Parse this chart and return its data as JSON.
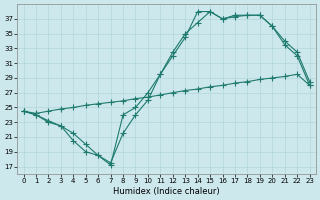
{
  "xlabel": "Humidex (Indice chaleur)",
  "bg_color": "#cde8ec",
  "line_color": "#1e7a6e",
  "grid_color": "#b2d8dc",
  "xlim": [
    -0.5,
    23.5
  ],
  "ylim": [
    16.0,
    39.0
  ],
  "xticks": [
    0,
    1,
    2,
    3,
    4,
    5,
    6,
    7,
    8,
    9,
    10,
    11,
    12,
    13,
    14,
    15,
    16,
    17,
    18,
    19,
    20,
    21,
    22,
    23
  ],
  "yticks": [
    17,
    19,
    21,
    23,
    25,
    27,
    29,
    31,
    33,
    35,
    37
  ],
  "line1_x": [
    0,
    1,
    2,
    3,
    4,
    5,
    6,
    7,
    8,
    9,
    10,
    11,
    12,
    13,
    14,
    15,
    16,
    17,
    18,
    19,
    20,
    21,
    22,
    23
  ],
  "line1_y": [
    24.5,
    24.0,
    23.2,
    22.5,
    20.5,
    19.0,
    18.5,
    17.2,
    24.0,
    25.0,
    27.0,
    29.5,
    32.0,
    34.5,
    38.0,
    38.0,
    37.0,
    37.5,
    37.5,
    37.5,
    36.0,
    33.5,
    32.0,
    28.0
  ],
  "line2_x": [
    0,
    1,
    2,
    3,
    4,
    5,
    6,
    7,
    8,
    9,
    10,
    11,
    12,
    13,
    14,
    15,
    16,
    17,
    18,
    19,
    20,
    21,
    22,
    23
  ],
  "line2_y": [
    24.5,
    24.2,
    24.5,
    24.8,
    25.0,
    25.3,
    25.5,
    25.7,
    25.9,
    26.2,
    26.4,
    26.7,
    27.0,
    27.3,
    27.5,
    27.8,
    28.0,
    28.3,
    28.5,
    28.8,
    29.0,
    29.2,
    29.5,
    28.0
  ],
  "line3_x": [
    0,
    1,
    2,
    3,
    4,
    5,
    6,
    7,
    8,
    9,
    10,
    11,
    12,
    13,
    14,
    15,
    16,
    17,
    18,
    19,
    20,
    21,
    22,
    23
  ],
  "line3_y": [
    24.5,
    24.0,
    23.0,
    22.5,
    21.5,
    20.0,
    18.5,
    17.5,
    21.5,
    24.0,
    26.0,
    29.5,
    32.5,
    35.0,
    36.5,
    38.0,
    37.0,
    37.3,
    37.5,
    37.5,
    36.0,
    34.0,
    32.5,
    28.5
  ],
  "markersize": 2.0,
  "linewidth": 0.8,
  "tick_fontsize": 5,
  "xlabel_fontsize": 6
}
